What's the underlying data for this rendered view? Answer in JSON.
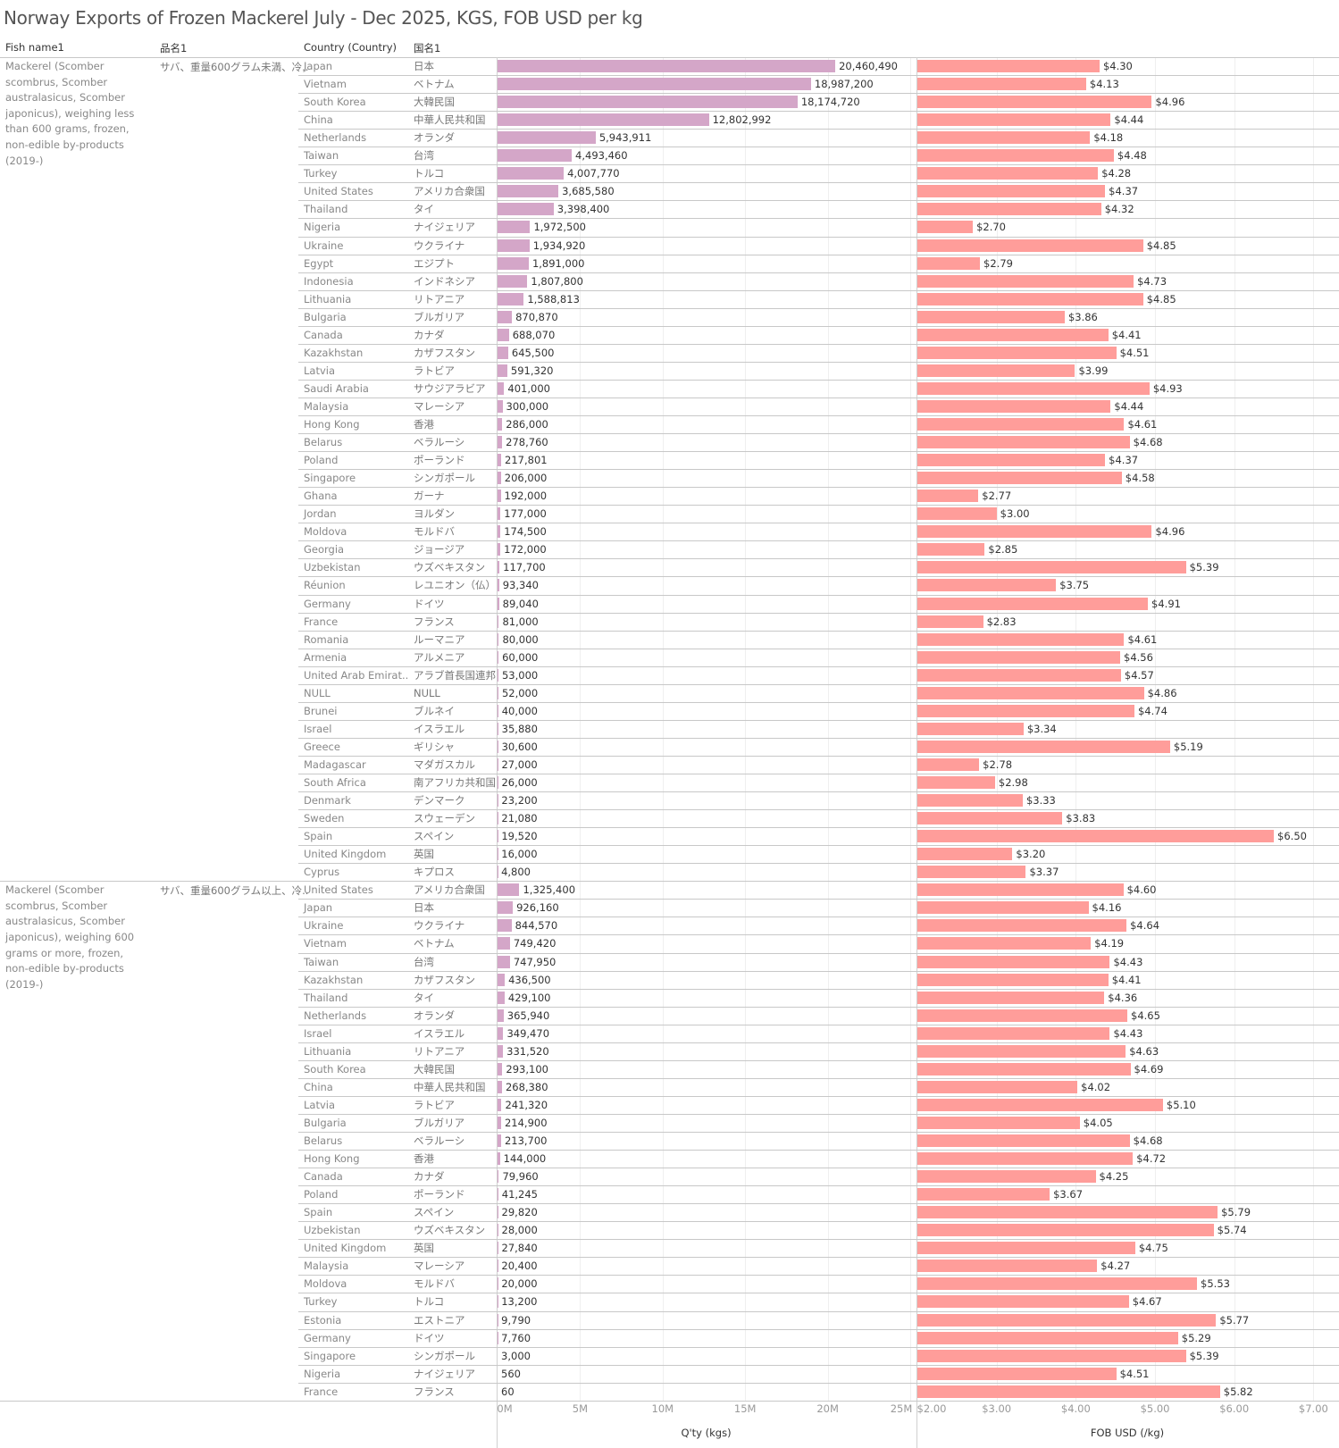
{
  "title": "Norway Exports of Frozen Mackerel July - Dec 2025, KGS, FOB USD per kg",
  "headers": {
    "fish_name": "Fish name1",
    "jp_product": "品名1",
    "country": "Country (Country)",
    "jp_country": "国名1"
  },
  "colors": {
    "qty_bar": "#d4a6c8",
    "fob_bar": "#ff9d9a"
  },
  "chart_data": {
    "type": "bar",
    "orientation": "horizontal",
    "title": "Norway Exports of Frozen Mackerel July - Dec 2025, KGS, FOB USD per kg",
    "panes": [
      {
        "measure": "Q'ty (kgs)",
        "xlabel": "Q'ty (kgs)",
        "xlim": [
          0,
          25000000
        ],
        "ticks": [
          "0M",
          "5M",
          "10M",
          "15M",
          "20M",
          "25M"
        ],
        "tick_values": [
          0,
          5000000,
          10000000,
          15000000,
          20000000,
          25000000
        ]
      },
      {
        "measure": "FOB USD (/kg)",
        "xlabel": "FOB USD (/kg)",
        "xlim": [
          2.0,
          7.3
        ],
        "ticks": [
          "$2.00",
          "$3.00",
          "$4.00",
          "$5.00",
          "$6.00",
          "$7.00"
        ],
        "tick_values": [
          2,
          3,
          4,
          5,
          6,
          7
        ]
      }
    ],
    "grid": true,
    "groups": [
      {
        "fish_name": "Mackerel (Scomber scombrus, Scomber australasicus, Scomber japonicus), weighing less than 600 grams, frozen, non-edible by-products (2019-)",
        "jp_name": "サバ、重量600グラム未満、冷..",
        "rows": [
          {
            "country": "Japan",
            "jp": "日本",
            "qty": 20460490,
            "qty_label": "20,460,490",
            "fob": 4.3,
            "fob_label": "$4.30"
          },
          {
            "country": "Vietnam",
            "jp": "ベトナム",
            "qty": 18987200,
            "qty_label": "18,987,200",
            "fob": 4.13,
            "fob_label": "$4.13"
          },
          {
            "country": "South Korea",
            "jp": "大韓民国",
            "qty": 18174720,
            "qty_label": "18,174,720",
            "fob": 4.96,
            "fob_label": "$4.96"
          },
          {
            "country": "China",
            "jp": "中華人民共和国",
            "qty": 12802992,
            "qty_label": "12,802,992",
            "fob": 4.44,
            "fob_label": "$4.44"
          },
          {
            "country": "Netherlands",
            "jp": "オランダ",
            "qty": 5943911,
            "qty_label": "5,943,911",
            "fob": 4.18,
            "fob_label": "$4.18"
          },
          {
            "country": "Taiwan",
            "jp": "台湾",
            "qty": 4493460,
            "qty_label": "4,493,460",
            "fob": 4.48,
            "fob_label": "$4.48"
          },
          {
            "country": "Turkey",
            "jp": "トルコ",
            "qty": 4007770,
            "qty_label": "4,007,770",
            "fob": 4.28,
            "fob_label": "$4.28"
          },
          {
            "country": "United States",
            "jp": "アメリカ合衆国",
            "qty": 3685580,
            "qty_label": "3,685,580",
            "fob": 4.37,
            "fob_label": "$4.37"
          },
          {
            "country": "Thailand",
            "jp": "タイ",
            "qty": 3398400,
            "qty_label": "3,398,400",
            "fob": 4.32,
            "fob_label": "$4.32"
          },
          {
            "country": "Nigeria",
            "jp": "ナイジェリア",
            "qty": 1972500,
            "qty_label": "1,972,500",
            "fob": 2.7,
            "fob_label": "$2.70"
          },
          {
            "country": "Ukraine",
            "jp": "ウクライナ",
            "qty": 1934920,
            "qty_label": "1,934,920",
            "fob": 4.85,
            "fob_label": "$4.85"
          },
          {
            "country": "Egypt",
            "jp": "エジプト",
            "qty": 1891000,
            "qty_label": "1,891,000",
            "fob": 2.79,
            "fob_label": "$2.79"
          },
          {
            "country": "Indonesia",
            "jp": "インドネシア",
            "qty": 1807800,
            "qty_label": "1,807,800",
            "fob": 4.73,
            "fob_label": "$4.73"
          },
          {
            "country": "Lithuania",
            "jp": "リトアニア",
            "qty": 1588813,
            "qty_label": "1,588,813",
            "fob": 4.85,
            "fob_label": "$4.85"
          },
          {
            "country": "Bulgaria",
            "jp": "ブルガリア",
            "qty": 870870,
            "qty_label": "870,870",
            "fob": 3.86,
            "fob_label": "$3.86"
          },
          {
            "country": "Canada",
            "jp": "カナダ",
            "qty": 688070,
            "qty_label": "688,070",
            "fob": 4.41,
            "fob_label": "$4.41"
          },
          {
            "country": "Kazakhstan",
            "jp": "カザフスタン",
            "qty": 645500,
            "qty_label": "645,500",
            "fob": 4.51,
            "fob_label": "$4.51"
          },
          {
            "country": "Latvia",
            "jp": "ラトビア",
            "qty": 591320,
            "qty_label": "591,320",
            "fob": 3.99,
            "fob_label": "$3.99"
          },
          {
            "country": "Saudi Arabia",
            "jp": "サウジアラビア",
            "qty": 401000,
            "qty_label": "401,000",
            "fob": 4.93,
            "fob_label": "$4.93"
          },
          {
            "country": "Malaysia",
            "jp": "マレーシア",
            "qty": 300000,
            "qty_label": "300,000",
            "fob": 4.44,
            "fob_label": "$4.44"
          },
          {
            "country": "Hong Kong",
            "jp": "香港",
            "qty": 286000,
            "qty_label": "286,000",
            "fob": 4.61,
            "fob_label": "$4.61"
          },
          {
            "country": "Belarus",
            "jp": "ベラルーシ",
            "qty": 278760,
            "qty_label": "278,760",
            "fob": 4.68,
            "fob_label": "$4.68"
          },
          {
            "country": "Poland",
            "jp": "ポーランド",
            "qty": 217801,
            "qty_label": "217,801",
            "fob": 4.37,
            "fob_label": "$4.37"
          },
          {
            "country": "Singapore",
            "jp": "シンガポール",
            "qty": 206000,
            "qty_label": "206,000",
            "fob": 4.58,
            "fob_label": "$4.58"
          },
          {
            "country": "Ghana",
            "jp": "ガーナ",
            "qty": 192000,
            "qty_label": "192,000",
            "fob": 2.77,
            "fob_label": "$2.77"
          },
          {
            "country": "Jordan",
            "jp": "ヨルダン",
            "qty": 177000,
            "qty_label": "177,000",
            "fob": 3.0,
            "fob_label": "$3.00"
          },
          {
            "country": "Moldova",
            "jp": "モルドバ",
            "qty": 174500,
            "qty_label": "174,500",
            "fob": 4.96,
            "fob_label": "$4.96"
          },
          {
            "country": "Georgia",
            "jp": "ジョージア",
            "qty": 172000,
            "qty_label": "172,000",
            "fob": 2.85,
            "fob_label": "$2.85"
          },
          {
            "country": "Uzbekistan",
            "jp": "ウズベキスタン",
            "qty": 117700,
            "qty_label": "117,700",
            "fob": 5.39,
            "fob_label": "$5.39"
          },
          {
            "country": "Réunion",
            "jp": "レユニオン（仏）",
            "qty": 93340,
            "qty_label": "93,340",
            "fob": 3.75,
            "fob_label": "$3.75"
          },
          {
            "country": "Germany",
            "jp": "ドイツ",
            "qty": 89040,
            "qty_label": "89,040",
            "fob": 4.91,
            "fob_label": "$4.91"
          },
          {
            "country": "France",
            "jp": "フランス",
            "qty": 81000,
            "qty_label": "81,000",
            "fob": 2.83,
            "fob_label": "$2.83"
          },
          {
            "country": "Romania",
            "jp": "ルーマニア",
            "qty": 80000,
            "qty_label": "80,000",
            "fob": 4.61,
            "fob_label": "$4.61"
          },
          {
            "country": "Armenia",
            "jp": "アルメニア",
            "qty": 60000,
            "qty_label": "60,000",
            "fob": 4.56,
            "fob_label": "$4.56"
          },
          {
            "country": "United Arab Emirat..",
            "jp": "アラブ首長国連邦",
            "qty": 53000,
            "qty_label": "53,000",
            "fob": 4.57,
            "fob_label": "$4.57"
          },
          {
            "country": "NULL",
            "jp": "NULL",
            "qty": 52000,
            "qty_label": "52,000",
            "fob": 4.86,
            "fob_label": "$4.86"
          },
          {
            "country": "Brunei",
            "jp": "ブルネイ",
            "qty": 40000,
            "qty_label": "40,000",
            "fob": 4.74,
            "fob_label": "$4.74"
          },
          {
            "country": "Israel",
            "jp": "イスラエル",
            "qty": 35880,
            "qty_label": "35,880",
            "fob": 3.34,
            "fob_label": "$3.34"
          },
          {
            "country": "Greece",
            "jp": "ギリシャ",
            "qty": 30600,
            "qty_label": "30,600",
            "fob": 5.19,
            "fob_label": "$5.19"
          },
          {
            "country": "Madagascar",
            "jp": "マダガスカル",
            "qty": 27000,
            "qty_label": "27,000",
            "fob": 2.78,
            "fob_label": "$2.78"
          },
          {
            "country": "South Africa",
            "jp": "南アフリカ共和国",
            "qty": 26000,
            "qty_label": "26,000",
            "fob": 2.98,
            "fob_label": "$2.98"
          },
          {
            "country": "Denmark",
            "jp": "デンマーク",
            "qty": 23200,
            "qty_label": "23,200",
            "fob": 3.33,
            "fob_label": "$3.33"
          },
          {
            "country": "Sweden",
            "jp": "スウェーデン",
            "qty": 21080,
            "qty_label": "21,080",
            "fob": 3.83,
            "fob_label": "$3.83"
          },
          {
            "country": "Spain",
            "jp": "スペイン",
            "qty": 19520,
            "qty_label": "19,520",
            "fob": 6.5,
            "fob_label": "$6.50"
          },
          {
            "country": "United Kingdom",
            "jp": "英国",
            "qty": 16000,
            "qty_label": "16,000",
            "fob": 3.2,
            "fob_label": "$3.20"
          },
          {
            "country": "Cyprus",
            "jp": "キプロス",
            "qty": 4800,
            "qty_label": "4,800",
            "fob": 3.37,
            "fob_label": "$3.37"
          }
        ]
      },
      {
        "fish_name": "Mackerel (Scomber scombrus, Scomber australasicus, Scomber japonicus), weighing 600 grams or more, frozen, non-edible by-products (2019-)",
        "jp_name": "サバ、重量600グラム以上、冷..",
        "rows": [
          {
            "country": "United States",
            "jp": "アメリカ合衆国",
            "qty": 1325400,
            "qty_label": "1,325,400",
            "fob": 4.6,
            "fob_label": "$4.60"
          },
          {
            "country": "Japan",
            "jp": "日本",
            "qty": 926160,
            "qty_label": "926,160",
            "fob": 4.16,
            "fob_label": "$4.16"
          },
          {
            "country": "Ukraine",
            "jp": "ウクライナ",
            "qty": 844570,
            "qty_label": "844,570",
            "fob": 4.64,
            "fob_label": "$4.64"
          },
          {
            "country": "Vietnam",
            "jp": "ベトナム",
            "qty": 749420,
            "qty_label": "749,420",
            "fob": 4.19,
            "fob_label": "$4.19"
          },
          {
            "country": "Taiwan",
            "jp": "台湾",
            "qty": 747950,
            "qty_label": "747,950",
            "fob": 4.43,
            "fob_label": "$4.43"
          },
          {
            "country": "Kazakhstan",
            "jp": "カザフスタン",
            "qty": 436500,
            "qty_label": "436,500",
            "fob": 4.41,
            "fob_label": "$4.41"
          },
          {
            "country": "Thailand",
            "jp": "タイ",
            "qty": 429100,
            "qty_label": "429,100",
            "fob": 4.36,
            "fob_label": "$4.36"
          },
          {
            "country": "Netherlands",
            "jp": "オランダ",
            "qty": 365940,
            "qty_label": "365,940",
            "fob": 4.65,
            "fob_label": "$4.65"
          },
          {
            "country": "Israel",
            "jp": "イスラエル",
            "qty": 349470,
            "qty_label": "349,470",
            "fob": 4.43,
            "fob_label": "$4.43"
          },
          {
            "country": "Lithuania",
            "jp": "リトアニア",
            "qty": 331520,
            "qty_label": "331,520",
            "fob": 4.63,
            "fob_label": "$4.63"
          },
          {
            "country": "South Korea",
            "jp": "大韓民国",
            "qty": 293100,
            "qty_label": "293,100",
            "fob": 4.69,
            "fob_label": "$4.69"
          },
          {
            "country": "China",
            "jp": "中華人民共和国",
            "qty": 268380,
            "qty_label": "268,380",
            "fob": 4.02,
            "fob_label": "$4.02"
          },
          {
            "country": "Latvia",
            "jp": "ラトビア",
            "qty": 241320,
            "qty_label": "241,320",
            "fob": 5.1,
            "fob_label": "$5.10"
          },
          {
            "country": "Bulgaria",
            "jp": "ブルガリア",
            "qty": 214900,
            "qty_label": "214,900",
            "fob": 4.05,
            "fob_label": "$4.05"
          },
          {
            "country": "Belarus",
            "jp": "ベラルーシ",
            "qty": 213700,
            "qty_label": "213,700",
            "fob": 4.68,
            "fob_label": "$4.68"
          },
          {
            "country": "Hong Kong",
            "jp": "香港",
            "qty": 144000,
            "qty_label": "144,000",
            "fob": 4.72,
            "fob_label": "$4.72"
          },
          {
            "country": "Canada",
            "jp": "カナダ",
            "qty": 79960,
            "qty_label": "79,960",
            "fob": 4.25,
            "fob_label": "$4.25"
          },
          {
            "country": "Poland",
            "jp": "ポーランド",
            "qty": 41245,
            "qty_label": "41,245",
            "fob": 3.67,
            "fob_label": "$3.67"
          },
          {
            "country": "Spain",
            "jp": "スペイン",
            "qty": 29820,
            "qty_label": "29,820",
            "fob": 5.79,
            "fob_label": "$5.79"
          },
          {
            "country": "Uzbekistan",
            "jp": "ウズベキスタン",
            "qty": 28000,
            "qty_label": "28,000",
            "fob": 5.74,
            "fob_label": "$5.74"
          },
          {
            "country": "United Kingdom",
            "jp": "英国",
            "qty": 27840,
            "qty_label": "27,840",
            "fob": 4.75,
            "fob_label": "$4.75"
          },
          {
            "country": "Malaysia",
            "jp": "マレーシア",
            "qty": 20400,
            "qty_label": "20,400",
            "fob": 4.27,
            "fob_label": "$4.27"
          },
          {
            "country": "Moldova",
            "jp": "モルドバ",
            "qty": 20000,
            "qty_label": "20,000",
            "fob": 5.53,
            "fob_label": "$5.53"
          },
          {
            "country": "Turkey",
            "jp": "トルコ",
            "qty": 13200,
            "qty_label": "13,200",
            "fob": 4.67,
            "fob_label": "$4.67"
          },
          {
            "country": "Estonia",
            "jp": "エストニア",
            "qty": 9790,
            "qty_label": "9,790",
            "fob": 5.77,
            "fob_label": "$5.77"
          },
          {
            "country": "Germany",
            "jp": "ドイツ",
            "qty": 7760,
            "qty_label": "7,760",
            "fob": 5.29,
            "fob_label": "$5.29"
          },
          {
            "country": "Singapore",
            "jp": "シンガポール",
            "qty": 3000,
            "qty_label": "3,000",
            "fob": 5.39,
            "fob_label": "$5.39"
          },
          {
            "country": "Nigeria",
            "jp": "ナイジェリア",
            "qty": 560,
            "qty_label": "560",
            "fob": 4.51,
            "fob_label": "$4.51"
          },
          {
            "country": "France",
            "jp": "フランス",
            "qty": 60,
            "qty_label": "60",
            "fob": 5.82,
            "fob_label": "$5.82"
          }
        ]
      }
    ]
  }
}
